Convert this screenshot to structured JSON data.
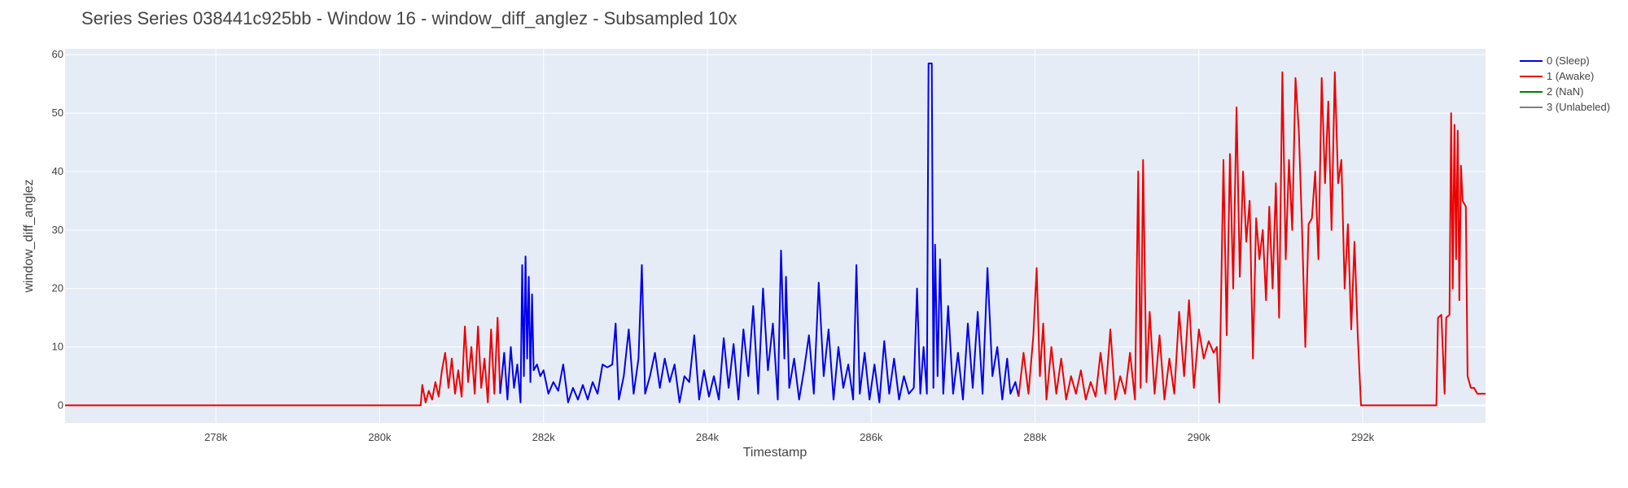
{
  "chart_data": {
    "type": "line",
    "title": "Series Series 038441c925bb - Window 16 - window_diff_anglez - Subsampled 10x",
    "xlabel": "Timestamp",
    "ylabel": "window_diff_anglez",
    "xlim": [
      276160,
      293500
    ],
    "ylim": [
      -3,
      61
    ],
    "x_ticks": [
      {
        "value": 278000,
        "label": "278k"
      },
      {
        "value": 280000,
        "label": "280k"
      },
      {
        "value": 282000,
        "label": "282k"
      },
      {
        "value": 284000,
        "label": "284k"
      },
      {
        "value": 286000,
        "label": "286k"
      },
      {
        "value": 288000,
        "label": "288k"
      },
      {
        "value": 290000,
        "label": "290k"
      },
      {
        "value": 292000,
        "label": "292k"
      }
    ],
    "y_ticks": [
      {
        "value": 0,
        "label": "0"
      },
      {
        "value": 10,
        "label": "10"
      },
      {
        "value": 20,
        "label": "20"
      },
      {
        "value": 30,
        "label": "30"
      },
      {
        "value": 40,
        "label": "40"
      },
      {
        "value": 50,
        "label": "50"
      },
      {
        "value": 60,
        "label": "60"
      }
    ],
    "grid": true,
    "legend_position": "top-right-outside",
    "legend": [
      {
        "label": "0 (Sleep)",
        "color": "#0000ee"
      },
      {
        "label": "1 (Awake)",
        "color": "#ee0000"
      },
      {
        "label": "2 (NaN)",
        "color": "#008000"
      },
      {
        "label": "3 (Unlabeled)",
        "color": "#808080"
      }
    ],
    "series": [
      {
        "color": "#ee0000",
        "points": [
          [
            276160,
            0
          ],
          [
            280500,
            0
          ],
          [
            280520,
            3.5
          ],
          [
            280560,
            0.5
          ],
          [
            280600,
            2.5
          ],
          [
            280640,
            1
          ],
          [
            280680,
            4
          ],
          [
            280720,
            1.5
          ],
          [
            280760,
            6
          ],
          [
            280800,
            9
          ],
          [
            280840,
            3
          ],
          [
            280880,
            8
          ],
          [
            280920,
            2
          ],
          [
            280960,
            6
          ],
          [
            281000,
            1.5
          ],
          [
            281040,
            13.5
          ],
          [
            281080,
            4
          ],
          [
            281120,
            10
          ],
          [
            281160,
            2
          ],
          [
            281200,
            13.5
          ],
          [
            281240,
            3
          ],
          [
            281280,
            8
          ],
          [
            281320,
            0.5
          ],
          [
            281360,
            13
          ],
          [
            281400,
            2
          ],
          [
            281440,
            15
          ],
          [
            281470,
            2
          ]
        ]
      },
      {
        "color": "#0000ee",
        "points": [
          [
            281470,
            2
          ],
          [
            281520,
            9
          ],
          [
            281560,
            1
          ],
          [
            281600,
            10
          ],
          [
            281640,
            3
          ],
          [
            281680,
            7
          ],
          [
            281720,
            0.5
          ],
          [
            281740,
            24
          ],
          [
            281760,
            5
          ],
          [
            281780,
            25.5
          ],
          [
            281800,
            8
          ],
          [
            281820,
            22
          ],
          [
            281840,
            4
          ],
          [
            281860,
            19
          ],
          [
            281880,
            6
          ],
          [
            281920,
            7
          ],
          [
            281960,
            5
          ],
          [
            282000,
            6
          ],
          [
            282060,
            2
          ],
          [
            282120,
            4
          ],
          [
            282180,
            2.5
          ],
          [
            282240,
            7
          ],
          [
            282300,
            0.5
          ],
          [
            282360,
            3
          ],
          [
            282420,
            1
          ],
          [
            282480,
            3.5
          ],
          [
            282540,
            1
          ],
          [
            282600,
            4
          ],
          [
            282660,
            2
          ],
          [
            282720,
            7
          ],
          [
            282780,
            6.5
          ],
          [
            282840,
            7
          ],
          [
            282880,
            14
          ],
          [
            282920,
            1
          ],
          [
            282980,
            5
          ],
          [
            283040,
            13
          ],
          [
            283100,
            2
          ],
          [
            283160,
            8
          ],
          [
            283200,
            24
          ],
          [
            283240,
            2
          ],
          [
            283300,
            5
          ],
          [
            283360,
            9
          ],
          [
            283420,
            3
          ],
          [
            283480,
            8
          ],
          [
            283540,
            4
          ],
          [
            283600,
            7
          ],
          [
            283660,
            0.5
          ],
          [
            283720,
            5
          ],
          [
            283780,
            4
          ],
          [
            283840,
            12
          ],
          [
            283900,
            1
          ],
          [
            283960,
            6
          ],
          [
            284020,
            1.5
          ],
          [
            284080,
            5
          ],
          [
            284140,
            1
          ],
          [
            284200,
            11.5
          ],
          [
            284260,
            3
          ],
          [
            284320,
            10.5
          ],
          [
            284380,
            1
          ],
          [
            284440,
            13
          ],
          [
            284500,
            5
          ],
          [
            284560,
            17
          ],
          [
            284620,
            2
          ],
          [
            284680,
            20
          ],
          [
            284740,
            6
          ],
          [
            284800,
            14
          ],
          [
            284860,
            1
          ],
          [
            284900,
            26.5
          ],
          [
            284940,
            8
          ],
          [
            284960,
            22
          ],
          [
            285000,
            3
          ],
          [
            285060,
            8
          ],
          [
            285120,
            1
          ],
          [
            285180,
            6
          ],
          [
            285240,
            12
          ],
          [
            285300,
            2
          ],
          [
            285360,
            21
          ],
          [
            285420,
            5
          ],
          [
            285480,
            13
          ],
          [
            285540,
            1
          ],
          [
            285600,
            10
          ],
          [
            285660,
            3
          ],
          [
            285720,
            7
          ],
          [
            285780,
            1
          ],
          [
            285820,
            24
          ],
          [
            285860,
            2
          ],
          [
            285920,
            9
          ],
          [
            285980,
            1
          ],
          [
            286040,
            7
          ],
          [
            286100,
            0.5
          ],
          [
            286160,
            11
          ],
          [
            286220,
            2
          ],
          [
            286280,
            8
          ],
          [
            286340,
            1
          ],
          [
            286400,
            5
          ],
          [
            286460,
            2
          ],
          [
            286520,
            3
          ],
          [
            286560,
            20
          ],
          [
            286600,
            2
          ],
          [
            286640,
            10
          ],
          [
            286680,
            2
          ],
          [
            286700,
            58.5
          ],
          [
            286740,
            58.5
          ],
          [
            286760,
            3
          ],
          [
            286780,
            27.5
          ],
          [
            286810,
            5
          ],
          [
            286840,
            25
          ],
          [
            286880,
            2
          ],
          [
            286940,
            17
          ],
          [
            287000,
            2
          ],
          [
            287060,
            9
          ],
          [
            287120,
            1
          ],
          [
            287180,
            14
          ],
          [
            287240,
            3
          ],
          [
            287300,
            16
          ],
          [
            287360,
            2
          ],
          [
            287420,
            23.5
          ],
          [
            287480,
            5
          ],
          [
            287540,
            10
          ],
          [
            287600,
            1
          ],
          [
            287660,
            8
          ],
          [
            287700,
            2
          ],
          [
            287760,
            4
          ],
          [
            287800,
            1.5
          ]
        ]
      },
      {
        "color": "#ee0000",
        "points": [
          [
            287800,
            1.5
          ],
          [
            287860,
            9
          ],
          [
            287920,
            2
          ],
          [
            287980,
            12
          ],
          [
            288020,
            23.5
          ],
          [
            288060,
            5
          ],
          [
            288100,
            14
          ],
          [
            288140,
            1
          ],
          [
            288200,
            10
          ],
          [
            288260,
            2
          ],
          [
            288320,
            8
          ],
          [
            288380,
            1
          ],
          [
            288440,
            5
          ],
          [
            288500,
            2
          ],
          [
            288560,
            6
          ],
          [
            288620,
            1
          ],
          [
            288680,
            4
          ],
          [
            288740,
            1.5
          ],
          [
            288800,
            9
          ],
          [
            288860,
            2
          ],
          [
            288920,
            13
          ],
          [
            288980,
            1
          ],
          [
            289040,
            5
          ],
          [
            289100,
            2
          ],
          [
            289160,
            9
          ],
          [
            289220,
            1
          ],
          [
            289260,
            40
          ],
          [
            289290,
            3
          ],
          [
            289320,
            42
          ],
          [
            289360,
            4
          ],
          [
            289400,
            16
          ],
          [
            289460,
            2
          ],
          [
            289520,
            12
          ],
          [
            289580,
            1
          ],
          [
            289640,
            8
          ],
          [
            289700,
            2
          ],
          [
            289760,
            16
          ],
          [
            289820,
            5
          ],
          [
            289880,
            18
          ],
          [
            289940,
            3
          ],
          [
            290000,
            13
          ],
          [
            290060,
            8
          ],
          [
            290120,
            11
          ],
          [
            290180,
            9
          ],
          [
            290220,
            10
          ],
          [
            290250,
            0.5
          ],
          [
            290300,
            42
          ],
          [
            290340,
            12
          ],
          [
            290380,
            43
          ],
          [
            290420,
            20
          ],
          [
            290460,
            51
          ],
          [
            290500,
            22
          ],
          [
            290540,
            40
          ],
          [
            290580,
            28
          ],
          [
            290620,
            35
          ],
          [
            290660,
            8
          ],
          [
            290700,
            32
          ],
          [
            290740,
            25
          ],
          [
            290780,
            30
          ],
          [
            290820,
            18
          ],
          [
            290860,
            34
          ],
          [
            290900,
            20
          ],
          [
            290940,
            38
          ],
          [
            290980,
            15
          ],
          [
            291020,
            57
          ],
          [
            291060,
            25
          ],
          [
            291100,
            42
          ],
          [
            291140,
            30
          ],
          [
            291180,
            56
          ],
          [
            291220,
            47
          ],
          [
            291260,
            30
          ],
          [
            291300,
            10
          ],
          [
            291340,
            31
          ],
          [
            291380,
            32
          ],
          [
            291420,
            40
          ],
          [
            291460,
            25
          ],
          [
            291500,
            56
          ],
          [
            291540,
            38
          ],
          [
            291580,
            52
          ],
          [
            291620,
            30
          ],
          [
            291660,
            57
          ],
          [
            291700,
            38
          ],
          [
            291740,
            42
          ],
          [
            291780,
            20
          ],
          [
            291820,
            31
          ],
          [
            291860,
            13
          ],
          [
            291900,
            28
          ],
          [
            291940,
            12
          ],
          [
            291980,
            0
          ],
          [
            292900,
            0
          ],
          [
            292920,
            15
          ],
          [
            292960,
            15.5
          ],
          [
            293000,
            2
          ],
          [
            293020,
            15
          ],
          [
            293060,
            15.5
          ],
          [
            293080,
            50
          ],
          [
            293100,
            20
          ],
          [
            293120,
            48
          ],
          [
            293140,
            25
          ],
          [
            293160,
            47
          ],
          [
            293180,
            18
          ],
          [
            293200,
            41
          ],
          [
            293220,
            35
          ],
          [
            293260,
            34
          ],
          [
            293280,
            5
          ],
          [
            293320,
            3
          ],
          [
            293360,
            3
          ],
          [
            293400,
            2
          ],
          [
            293460,
            2
          ],
          [
            293500,
            2
          ]
        ]
      }
    ]
  }
}
